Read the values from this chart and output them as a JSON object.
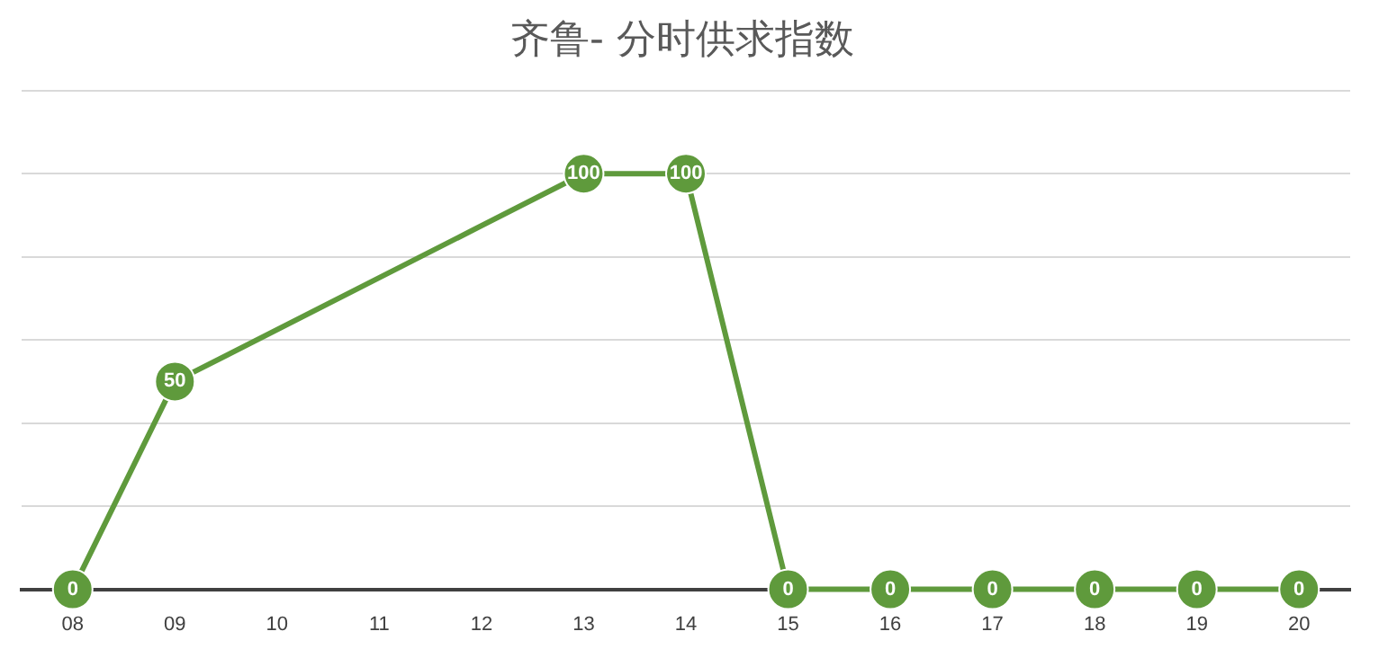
{
  "chart_data": {
    "type": "line",
    "title": "齐鲁- 分时供求指数",
    "categories": [
      "08",
      "09",
      "10",
      "11",
      "12",
      "13",
      "14",
      "15",
      "16",
      "17",
      "18",
      "19",
      "20"
    ],
    "series": [
      {
        "color": "#5f9a3c",
        "values": [
          0,
          50,
          null,
          null,
          null,
          100,
          100,
          0,
          0,
          0,
          0,
          0,
          0
        ]
      }
    ],
    "ylim": [
      0,
      120
    ],
    "yticks": [
      {
        "value": 0,
        "label": null
      },
      {
        "value": 20,
        "label": null
      },
      {
        "value": 40,
        "label": null
      },
      {
        "value": 60,
        "label": null
      },
      {
        "value": 80,
        "label": null
      },
      {
        "value": 100,
        "label": null
      },
      {
        "value": 120,
        "label": null
      }
    ],
    "tick_labels": "x",
    "grid": "y",
    "legend": false,
    "marker": "circle",
    "line_style": "solid",
    "data_labels": true
  }
}
